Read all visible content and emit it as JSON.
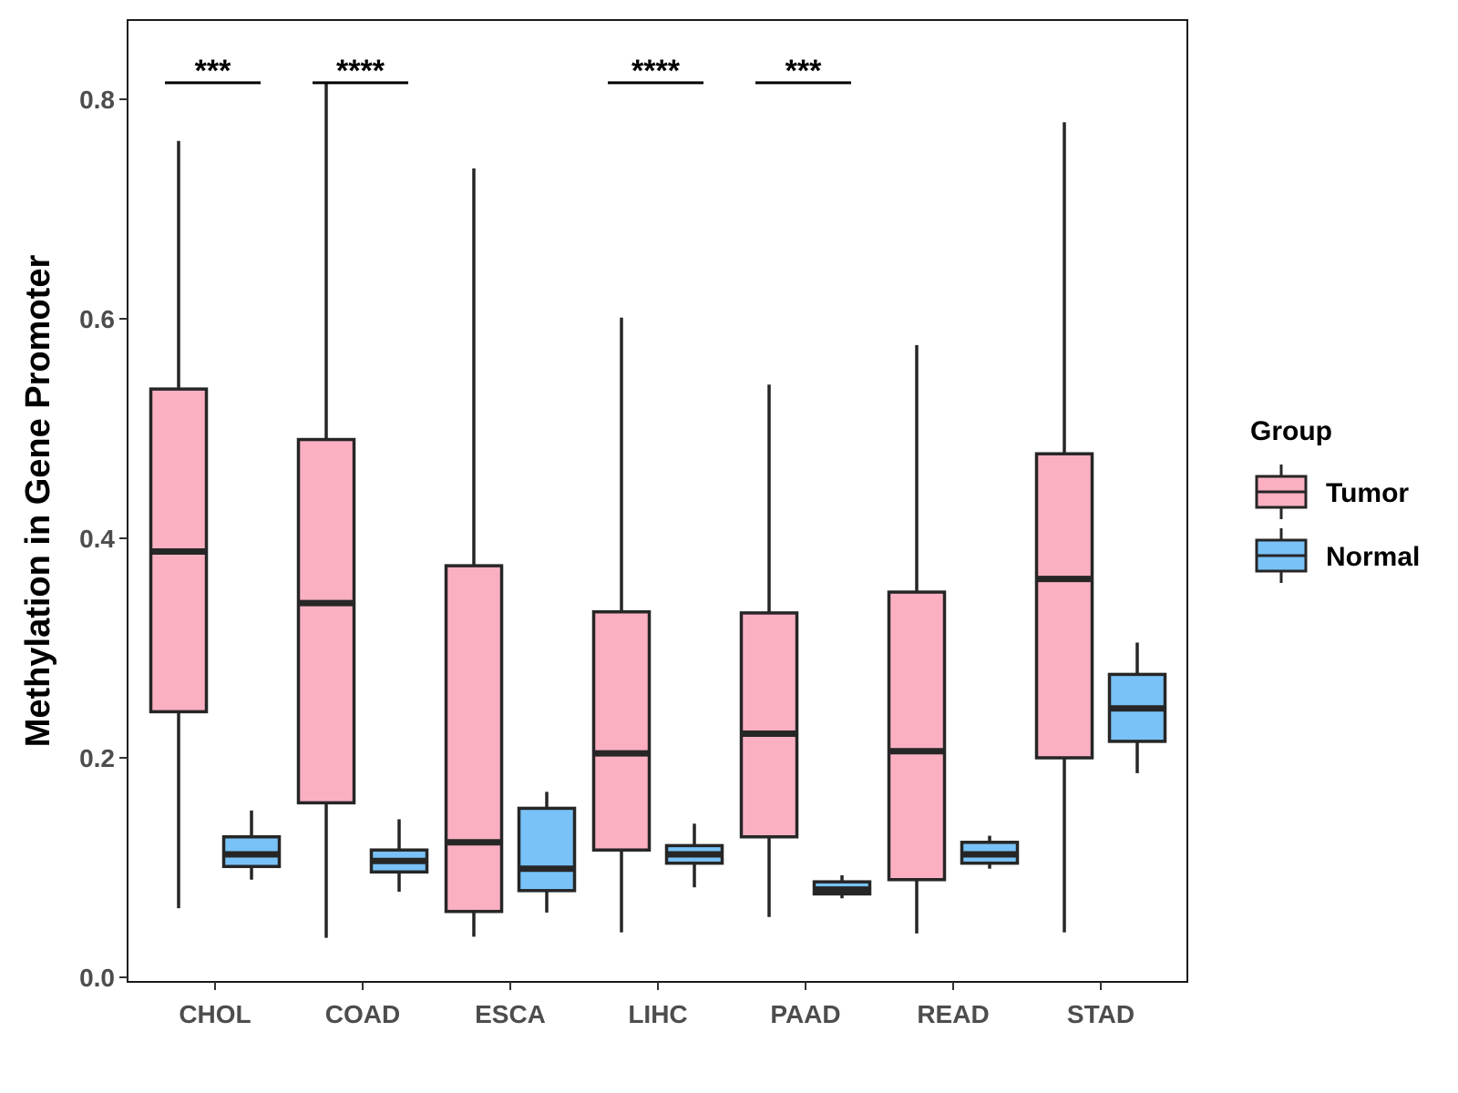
{
  "chart_data": {
    "type": "boxplot",
    "title": "",
    "xlabel": "",
    "ylabel": "Methylation in Gene Promoter",
    "ylim": [
      0,
      0.87
    ],
    "y_ticks": [
      0.0,
      0.2,
      0.4,
      0.6,
      0.8
    ],
    "y_tick_labels": [
      "0.0",
      "0.2",
      "0.4",
      "0.6",
      "0.8"
    ],
    "categories": [
      "CHOL",
      "COAD",
      "ESCA",
      "LIHC",
      "PAAD",
      "READ",
      "STAD"
    ],
    "legend": {
      "title": "Group",
      "position": "right",
      "entries": [
        {
          "name": "Tumor",
          "color": "#FBB0C2"
        },
        {
          "name": "Normal",
          "color": "#79C2F7"
        }
      ]
    },
    "series": [
      {
        "name": "Tumor",
        "color": "#FBB0C2",
        "boxes": [
          {
            "min": 0.063,
            "q1": 0.242,
            "median": 0.388,
            "q3": 0.536,
            "max": 0.762
          },
          {
            "min": 0.036,
            "q1": 0.159,
            "median": 0.341,
            "q3": 0.49,
            "max": 0.814
          },
          {
            "min": 0.037,
            "q1": 0.06,
            "median": 0.123,
            "q3": 0.375,
            "max": 0.737
          },
          {
            "min": 0.041,
            "q1": 0.116,
            "median": 0.204,
            "q3": 0.333,
            "max": 0.601
          },
          {
            "min": 0.055,
            "q1": 0.128,
            "median": 0.222,
            "q3": 0.332,
            "max": 0.54
          },
          {
            "min": 0.04,
            "q1": 0.089,
            "median": 0.206,
            "q3": 0.351,
            "max": 0.576
          },
          {
            "min": 0.041,
            "q1": 0.2,
            "median": 0.363,
            "q3": 0.477,
            "max": 0.779
          }
        ]
      },
      {
        "name": "Normal",
        "color": "#79C2F7",
        "boxes": [
          {
            "min": 0.089,
            "q1": 0.101,
            "median": 0.112,
            "q3": 0.128,
            "max": 0.152
          },
          {
            "min": 0.078,
            "q1": 0.096,
            "median": 0.106,
            "q3": 0.116,
            "max": 0.144
          },
          {
            "min": 0.059,
            "q1": 0.079,
            "median": 0.099,
            "q3": 0.154,
            "max": 0.169
          },
          {
            "min": 0.082,
            "q1": 0.104,
            "median": 0.112,
            "q3": 0.12,
            "max": 0.14
          },
          {
            "min": 0.072,
            "q1": 0.076,
            "median": 0.08,
            "q3": 0.087,
            "max": 0.093
          },
          {
            "min": 0.099,
            "q1": 0.104,
            "median": 0.112,
            "q3": 0.123,
            "max": 0.129
          },
          {
            "min": 0.186,
            "q1": 0.215,
            "median": 0.245,
            "q3": 0.276,
            "max": 0.305
          }
        ]
      }
    ],
    "significance": [
      {
        "category": "CHOL",
        "label": "***",
        "y": 0.815
      },
      {
        "category": "COAD",
        "label": "****",
        "y": 0.815
      },
      {
        "category": "LIHC",
        "label": "****",
        "y": 0.815
      },
      {
        "category": "PAAD",
        "label": "***",
        "y": 0.815
      }
    ],
    "grid": false
  }
}
